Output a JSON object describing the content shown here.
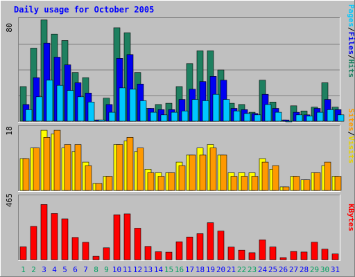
{
  "chart_data": {
    "type": "bar",
    "title": "Daily usage for October 2005",
    "days": [
      "1",
      "2",
      "3",
      "4",
      "5",
      "6",
      "7",
      "8",
      "9",
      "10",
      "11",
      "12",
      "13",
      "14",
      "15",
      "16",
      "17",
      "18",
      "19",
      "20",
      "21",
      "22",
      "23",
      "24",
      "25",
      "26",
      "27",
      "28",
      "29",
      "30",
      "31"
    ],
    "weekend_days": [
      "1",
      "2",
      "8",
      "9",
      "15",
      "16",
      "22",
      "23",
      "29",
      "30"
    ],
    "panels": [
      {
        "id": "hits",
        "ymax": 80,
        "ymax_label": "80",
        "legend": [
          "Pages",
          "Files",
          "Hits"
        ],
        "series": [
          {
            "name": "Hits",
            "color": "#1e8060",
            "values": [
              27,
              57,
              79,
              68,
              63,
              38,
              34,
              1,
              18,
              73,
              69,
              38,
              10,
              13,
              14,
              27,
              45,
              55,
              55,
              40,
              14,
              13,
              7,
              32,
              15,
              1,
              12,
              8,
              11,
              30,
              11
            ]
          },
          {
            "name": "Files",
            "color": "#0000f0",
            "values": [
              13,
              34,
              61,
              50,
              44,
              30,
              22,
              1,
              13,
              49,
              52,
              29,
              10,
              9,
              9,
              17,
              25,
              31,
              35,
              32,
              10,
              9,
              6,
              21,
              10,
              1,
              7,
              5,
              10,
              17,
              9
            ]
          },
          {
            "name": "Pages",
            "color": "#00c8ff",
            "values": [
              9,
              19,
              32,
              28,
              24,
              19,
              15,
              1,
              7,
              26,
              25,
              16,
              7,
              5,
              7,
              8,
              17,
              16,
              21,
              17,
              8,
              6,
              5,
              13,
              7,
              0,
              5,
              4,
              7,
              9,
              5
            ]
          }
        ]
      },
      {
        "id": "visits",
        "ymax": 18,
        "ymax_label": "18",
        "legend": [
          "Sites",
          "Visits"
        ],
        "series": [
          {
            "name": "Visits",
            "color": "#ffff00",
            "values": [
              9,
              12,
              17,
              16,
              12,
              11,
              8,
              2,
              4,
              13,
              14,
              11,
              6,
              5,
              5,
              8,
              10,
              12,
              13,
              10,
              5,
              5,
              5,
              9,
              6,
              1,
              4,
              3,
              5,
              7,
              4
            ]
          },
          {
            "name": "Sites",
            "color": "#ff9900",
            "values": [
              9,
              12,
              15,
              17,
              13,
              13,
              7,
              2,
              4,
              13,
              15,
              12,
              5,
              4,
              5,
              7,
              10,
              10,
              12,
              10,
              4,
              4,
              4,
              8,
              7,
              1,
              4,
              3,
              5,
              8,
              4
            ]
          }
        ]
      },
      {
        "id": "kbytes",
        "ymax": 465,
        "ymax_label": "465",
        "legend": [
          "KBytes"
        ],
        "series": [
          {
            "name": "KBytes",
            "color": "#ff0000",
            "values": [
              94,
              243,
              403,
              337,
              298,
              162,
              127,
              25,
              87,
              328,
              334,
              230,
              97,
              58,
              55,
              131,
              166,
              190,
              270,
              209,
              92,
              70,
              51,
              145,
              93,
              15,
              60,
              56,
              128,
              77,
              42
            ]
          }
        ]
      }
    ]
  }
}
